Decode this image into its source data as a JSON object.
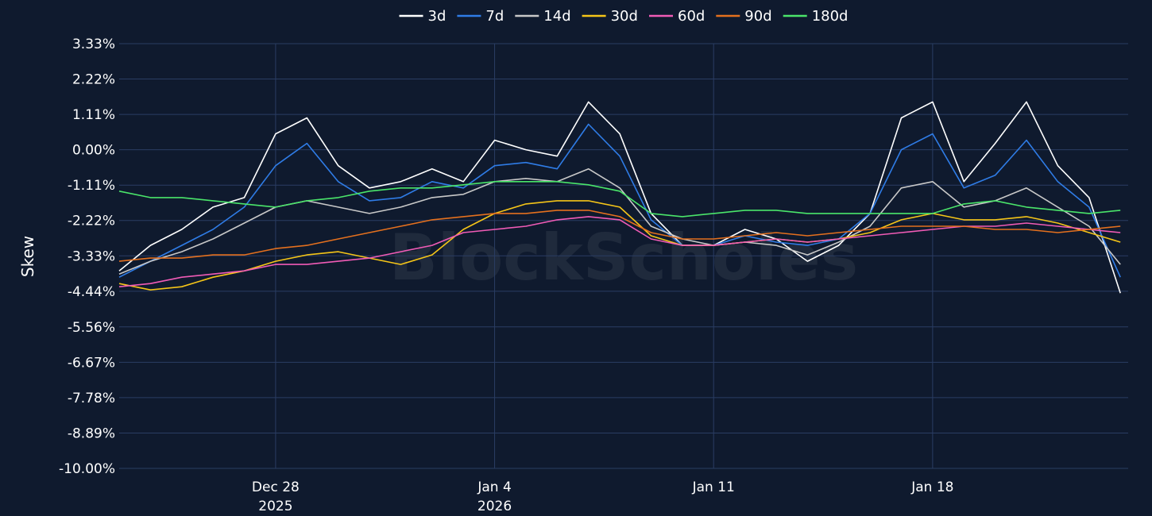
{
  "chart_data": {
    "type": "line",
    "ylabel": "Skew",
    "watermark": "BlockScholes",
    "grid": true,
    "legend_position": "top-center",
    "ylim": [
      -10.0,
      3.33
    ],
    "y_ticks": [
      3.33,
      2.22,
      1.11,
      0.0,
      -1.11,
      -2.22,
      -3.33,
      -4.44,
      -5.56,
      -6.67,
      -7.78,
      -8.89,
      -10.0
    ],
    "y_tick_labels": [
      "3.33%",
      "2.22%",
      "1.11%",
      "0.00%",
      "-1.11%",
      "-2.22%",
      "-3.33%",
      "-4.44%",
      "-5.56%",
      "-6.67%",
      "-7.78%",
      "-8.89%",
      "-10.00%"
    ],
    "xlim": [
      "2025-12-23",
      "2026-01-24T06:00"
    ],
    "x_ticks": [
      {
        "date": "2025-12-28",
        "label": "Dec 28",
        "sublabel": "2025"
      },
      {
        "date": "2026-01-04",
        "label": "Jan 4",
        "sublabel": "2026"
      },
      {
        "date": "2026-01-11",
        "label": "Jan 11",
        "sublabel": ""
      },
      {
        "date": "2026-01-18",
        "label": "Jan 18",
        "sublabel": ""
      }
    ],
    "x": [
      "2025-12-23",
      "2025-12-24",
      "2025-12-25",
      "2025-12-26",
      "2025-12-27",
      "2025-12-28",
      "2025-12-29",
      "2025-12-30",
      "2025-12-31",
      "2026-01-01",
      "2026-01-02",
      "2026-01-03",
      "2026-01-04",
      "2026-01-05",
      "2026-01-06",
      "2026-01-07",
      "2026-01-08",
      "2026-01-09",
      "2026-01-10",
      "2026-01-11",
      "2026-01-12",
      "2026-01-13",
      "2026-01-14",
      "2026-01-15",
      "2026-01-16",
      "2026-01-17",
      "2026-01-18",
      "2026-01-19",
      "2026-01-20",
      "2026-01-21",
      "2026-01-22",
      "2026-01-23",
      "2026-01-24"
    ],
    "series": [
      {
        "name": "3d",
        "color": "#ffffff",
        "values": [
          -3.8,
          -3.0,
          -2.5,
          -1.8,
          -1.5,
          0.5,
          1.0,
          -0.5,
          -1.2,
          -1.0,
          -0.6,
          -1.0,
          0.3,
          0.0,
          -0.2,
          1.5,
          0.5,
          -2.0,
          -3.0,
          -3.0,
          -2.5,
          -2.8,
          -3.5,
          -3.0,
          -2.0,
          1.0,
          1.5,
          -1.0,
          0.2,
          1.5,
          -0.5,
          -1.5,
          -4.5
        ]
      },
      {
        "name": "7d",
        "color": "#2f7ce6",
        "values": [
          -4.0,
          -3.5,
          -3.0,
          -2.5,
          -1.8,
          -0.5,
          0.2,
          -1.0,
          -1.6,
          -1.5,
          -1.0,
          -1.2,
          -0.5,
          -0.4,
          -0.6,
          0.8,
          -0.2,
          -2.2,
          -3.0,
          -3.0,
          -2.7,
          -2.9,
          -3.0,
          -2.8,
          -2.0,
          0.0,
          0.5,
          -1.2,
          -0.8,
          0.3,
          -1.0,
          -1.8,
          -4.0
        ]
      },
      {
        "name": "14d",
        "color": "#c8c8c8",
        "values": [
          -3.9,
          -3.5,
          -3.2,
          -2.8,
          -2.3,
          -1.8,
          -1.6,
          -1.8,
          -2.0,
          -1.8,
          -1.5,
          -1.4,
          -1.0,
          -0.9,
          -1.0,
          -0.6,
          -1.2,
          -2.4,
          -2.8,
          -3.0,
          -2.9,
          -3.0,
          -3.3,
          -2.9,
          -2.4,
          -1.2,
          -1.0,
          -1.8,
          -1.6,
          -1.2,
          -1.8,
          -2.4,
          -3.6
        ]
      },
      {
        "name": "30d",
        "color": "#f5c518",
        "values": [
          -4.2,
          -4.4,
          -4.3,
          -4.0,
          -3.8,
          -3.5,
          -3.3,
          -3.2,
          -3.4,
          -3.6,
          -3.3,
          -2.5,
          -2.0,
          -1.7,
          -1.6,
          -1.6,
          -1.8,
          -2.7,
          -3.0,
          -3.0,
          -2.9,
          -2.8,
          -2.9,
          -2.8,
          -2.6,
          -2.2,
          -2.0,
          -2.2,
          -2.2,
          -2.1,
          -2.3,
          -2.6,
          -2.9
        ]
      },
      {
        "name": "60d",
        "color": "#f05bb6",
        "values": [
          -4.3,
          -4.2,
          -4.0,
          -3.9,
          -3.8,
          -3.6,
          -3.6,
          -3.5,
          -3.4,
          -3.2,
          -3.0,
          -2.6,
          -2.5,
          -2.4,
          -2.2,
          -2.1,
          -2.2,
          -2.8,
          -3.0,
          -3.0,
          -2.9,
          -2.8,
          -2.9,
          -2.8,
          -2.7,
          -2.6,
          -2.5,
          -2.4,
          -2.4,
          -2.3,
          -2.4,
          -2.5,
          -2.6
        ]
      },
      {
        "name": "90d",
        "color": "#e4701e",
        "values": [
          -3.5,
          -3.4,
          -3.4,
          -3.3,
          -3.3,
          -3.1,
          -3.0,
          -2.8,
          -2.6,
          -2.4,
          -2.2,
          -2.1,
          -2.0,
          -2.0,
          -1.9,
          -1.9,
          -2.1,
          -2.6,
          -2.8,
          -2.8,
          -2.7,
          -2.6,
          -2.7,
          -2.6,
          -2.5,
          -2.4,
          -2.4,
          -2.4,
          -2.5,
          -2.5,
          -2.6,
          -2.5,
          -2.4
        ]
      },
      {
        "name": "180d",
        "color": "#4ae56a",
        "values": [
          -1.3,
          -1.5,
          -1.5,
          -1.6,
          -1.7,
          -1.8,
          -1.6,
          -1.5,
          -1.3,
          -1.2,
          -1.2,
          -1.1,
          -1.0,
          -1.0,
          -1.0,
          -1.1,
          -1.3,
          -2.0,
          -2.1,
          -2.0,
          -1.9,
          -1.9,
          -2.0,
          -2.0,
          -2.0,
          -2.0,
          -2.0,
          -1.7,
          -1.6,
          -1.8,
          -1.9,
          -2.0,
          -1.9
        ]
      }
    ]
  }
}
